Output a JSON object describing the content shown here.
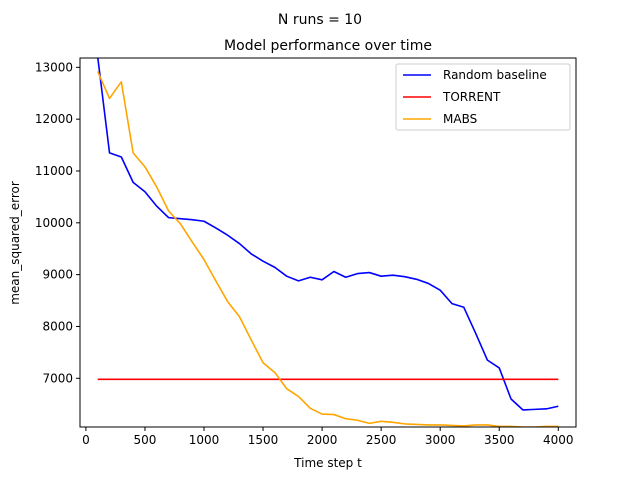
{
  "chart_data": {
    "type": "line",
    "suptitle": "N runs = 10",
    "title": "Model performance over time",
    "xlabel": "Time step t",
    "ylabel": "mean_squared_error",
    "xlim": [
      -50,
      4150
    ],
    "ylim": [
      6060,
      13180
    ],
    "xticks": [
      0,
      500,
      1000,
      1500,
      2000,
      2500,
      3000,
      3500,
      4000
    ],
    "yticks": [
      7000,
      8000,
      9000,
      10000,
      11000,
      12000,
      13000
    ],
    "legend_position": "top-right",
    "grid": false,
    "series": [
      {
        "name": "Random baseline",
        "color": "#0000ff",
        "x": [
          100,
          200,
          300,
          400,
          500,
          600,
          700,
          800,
          900,
          1000,
          1100,
          1200,
          1300,
          1400,
          1500,
          1600,
          1700,
          1800,
          1900,
          2000,
          2100,
          2200,
          2300,
          2400,
          2500,
          2600,
          2700,
          2800,
          2900,
          3000,
          3100,
          3200,
          3300,
          3400,
          3500,
          3600,
          3700,
          3800,
          3900,
          4000
        ],
        "y": [
          13200,
          11350,
          11270,
          10780,
          10600,
          10320,
          10100,
          10080,
          10060,
          10030,
          9900,
          9760,
          9600,
          9400,
          9260,
          9140,
          8970,
          8880,
          8950,
          8900,
          9060,
          8950,
          9020,
          9040,
          8970,
          8990,
          8960,
          8910,
          8830,
          8700,
          8440,
          8370,
          7870,
          7350,
          7200,
          6600,
          6390,
          6400,
          6410,
          6460
        ]
      },
      {
        "name": "TORRENT",
        "color": "#ff0000",
        "x": [
          100,
          4000
        ],
        "y": [
          6980,
          6980
        ]
      },
      {
        "name": "MABS",
        "color": "#ffa500",
        "x": [
          100,
          200,
          300,
          400,
          500,
          600,
          700,
          800,
          900,
          1000,
          1100,
          1200,
          1300,
          1400,
          1500,
          1600,
          1700,
          1800,
          1900,
          2000,
          2100,
          2200,
          2300,
          2400,
          2500,
          2600,
          2700,
          2800,
          2900,
          3000,
          3100,
          3200,
          3300,
          3400,
          3500,
          3600,
          3700,
          3800,
          3900,
          4000
        ],
        "y": [
          12920,
          12400,
          12720,
          11350,
          11080,
          10690,
          10230,
          9980,
          9630,
          9290,
          8880,
          8480,
          8190,
          7740,
          7300,
          7110,
          6800,
          6650,
          6420,
          6310,
          6300,
          6220,
          6190,
          6130,
          6170,
          6150,
          6120,
          6110,
          6100,
          6100,
          6090,
          6080,
          6100,
          6100,
          6070,
          6070,
          6060,
          6060,
          6070,
          6070
        ]
      }
    ]
  }
}
